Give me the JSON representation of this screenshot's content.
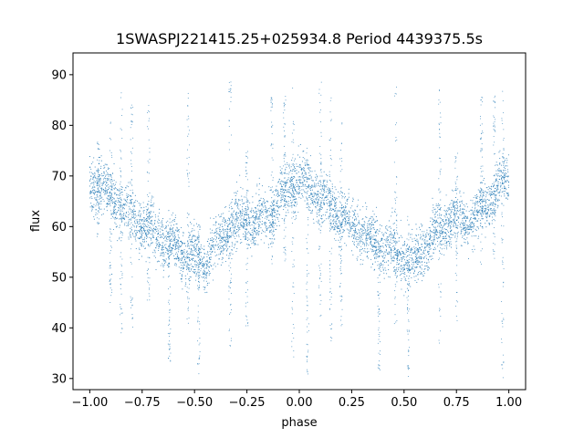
{
  "chart_data": {
    "type": "scatter",
    "title": "1SWASPJ221415.25+025934.8 Period 4439375.5s",
    "xlabel": "phase",
    "ylabel": "flux",
    "xlim": [
      -1.08,
      1.08
    ],
    "ylim": [
      27.8,
      94.3
    ],
    "xticks": [
      -1.0,
      -0.75,
      -0.5,
      -0.25,
      0.0,
      0.25,
      0.5,
      0.75,
      1.0
    ],
    "xtick_labels": [
      "−1.00",
      "−0.75",
      "−0.50",
      "−0.25",
      "0.00",
      "0.25",
      "0.50",
      "0.75",
      "1.00"
    ],
    "yticks": [
      30,
      40,
      50,
      60,
      70,
      80,
      90
    ],
    "ytick_labels": [
      "30",
      "40",
      "50",
      "60",
      "70",
      "80",
      "90"
    ],
    "grid": false,
    "marker_color": "#1f77b4",
    "series": [
      {
        "x": [
          -1.0,
          -0.95,
          -0.9,
          -0.85,
          -0.8,
          -0.75,
          -0.7,
          -0.65,
          -0.6,
          -0.55,
          -0.5,
          -0.45,
          -0.4,
          -0.35,
          -0.3,
          -0.25,
          -0.2,
          -0.15,
          -0.1,
          -0.05,
          0.0,
          0.05,
          0.1,
          0.15,
          0.2,
          0.25,
          0.3,
          0.35,
          0.4,
          0.45,
          0.5,
          0.55,
          0.6,
          0.65,
          0.7,
          0.75,
          0.8,
          0.85,
          0.9,
          0.95,
          1.0
        ],
        "y": [
          69,
          68,
          66,
          64,
          62,
          60,
          59,
          57,
          56,
          55,
          54,
          53,
          56,
          59,
          61,
          62,
          61,
          62,
          65,
          68,
          69,
          68,
          66,
          64,
          62,
          60,
          59,
          57,
          56,
          55,
          54,
          53,
          56,
          59,
          61,
          62,
          61,
          62,
          65,
          68,
          69
        ]
      }
    ],
    "outlier_columns": [
      {
        "x": -0.96,
        "ymin": 58,
        "ymax": 77
      },
      {
        "x": -0.9,
        "ymin": 45,
        "ymax": 81
      },
      {
        "x": -0.85,
        "ymin": 38,
        "ymax": 88
      },
      {
        "x": -0.8,
        "ymin": 40,
        "ymax": 85
      },
      {
        "x": -0.72,
        "ymin": 45,
        "ymax": 86
      },
      {
        "x": -0.62,
        "ymin": 31,
        "ymax": 60
      },
      {
        "x": -0.53,
        "ymin": 40,
        "ymax": 88
      },
      {
        "x": -0.48,
        "ymin": 30,
        "ymax": 62
      },
      {
        "x": -0.33,
        "ymin": 36,
        "ymax": 90
      },
      {
        "x": -0.25,
        "ymin": 40,
        "ymax": 75
      },
      {
        "x": -0.13,
        "ymin": 52,
        "ymax": 86
      },
      {
        "x": -0.07,
        "ymin": 53,
        "ymax": 86
      },
      {
        "x": -0.03,
        "ymin": 30,
        "ymax": 88
      },
      {
        "x": 0.04,
        "ymin": 30,
        "ymax": 76
      },
      {
        "x": 0.1,
        "ymin": 42,
        "ymax": 90
      },
      {
        "x": 0.15,
        "ymin": 36,
        "ymax": 86
      },
      {
        "x": 0.2,
        "ymin": 40,
        "ymax": 82
      },
      {
        "x": 0.38,
        "ymin": 31,
        "ymax": 60
      },
      {
        "x": 0.46,
        "ymin": 40,
        "ymax": 88
      },
      {
        "x": 0.52,
        "ymin": 30,
        "ymax": 62
      },
      {
        "x": 0.67,
        "ymin": 36,
        "ymax": 90
      },
      {
        "x": 0.75,
        "ymin": 40,
        "ymax": 75
      },
      {
        "x": 0.87,
        "ymin": 52,
        "ymax": 86
      },
      {
        "x": 0.93,
        "ymin": 53,
        "ymax": 86
      },
      {
        "x": 0.97,
        "ymin": 30,
        "ymax": 88
      }
    ]
  }
}
